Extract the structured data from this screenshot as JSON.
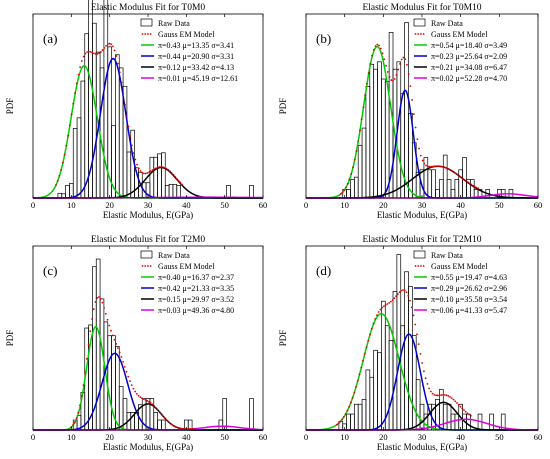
{
  "figure": {
    "xlabel": "Elastic Modulus, E(GPa)",
    "ylabel": "PDF",
    "legend_raw": "Raw Data",
    "legend_model": "Gauss EM Model"
  },
  "colors": {
    "raw_bar_edge": "#000000",
    "model_dots": "#e00000",
    "comp": [
      "#00cc00",
      "#0000cc",
      "#000000",
      "#dd00dd"
    ]
  },
  "chart_data": [
    {
      "type": "bar",
      "title": "Elastic Modulus Fit for T0M0",
      "panel": "(a)",
      "xlim": [
        0,
        60
      ],
      "xticks": [
        0,
        10,
        20,
        30,
        40,
        50,
        60
      ],
      "ylim": [
        0,
        0.07
      ],
      "grid": false,
      "legend_position": "top-right",
      "bin_width": 1,
      "hist": [
        [
          7,
          0.0018
        ],
        [
          8,
          0.0016
        ],
        [
          9,
          0.0048
        ],
        [
          10,
          0.0055
        ],
        [
          11,
          0.0265
        ],
        [
          12,
          0.0305
        ],
        [
          13,
          0.0445
        ],
        [
          14,
          0.0625
        ],
        [
          15,
          0.0785
        ],
        [
          16,
          0.0665
        ],
        [
          17,
          0.0555
        ],
        [
          18,
          0.0495
        ],
        [
          19,
          0.0755
        ],
        [
          20,
          0.0575
        ],
        [
          21,
          0.0275
        ],
        [
          22,
          0.0545
        ],
        [
          23,
          0.0495
        ],
        [
          24,
          0.0425
        ],
        [
          25,
          0.0175
        ],
        [
          26,
          0.0258
        ],
        [
          27,
          0.0115
        ],
        [
          28,
          0.0098
        ],
        [
          29,
          0.0058
        ],
        [
          30,
          0.0058
        ],
        [
          31,
          0.0155
        ],
        [
          32,
          0.0155
        ],
        [
          33,
          0.0168
        ],
        [
          34,
          0.0172
        ],
        [
          35,
          0.0048
        ],
        [
          36,
          0.0052
        ],
        [
          37,
          0.0052
        ],
        [
          38,
          0.0048
        ],
        [
          51,
          0.0048
        ],
        [
          57,
          0.0048
        ]
      ],
      "components": [
        {
          "label": "π=0.43  μ=13.35  σ=3.41",
          "pi": 0.43,
          "mu": 13.35,
          "sigma": 3.41
        },
        {
          "label": "π=0.44  μ=20.90  σ=3.31",
          "pi": 0.44,
          "mu": 20.9,
          "sigma": 3.31
        },
        {
          "label": "π=0.12  μ=33.42  σ=4.13",
          "pi": 0.12,
          "mu": 33.42,
          "sigma": 4.13
        },
        {
          "label": "π=0.01  μ=45.19  σ=12.61",
          "pi": 0.01,
          "mu": 45.19,
          "sigma": 12.61
        }
      ]
    },
    {
      "type": "bar",
      "title": "Elastic Modulus Fit for T0M10",
      "panel": "(b)",
      "xlim": [
        0,
        60
      ],
      "xticks": [
        0,
        10,
        20,
        30,
        40,
        50,
        60
      ],
      "ylim": [
        0,
        0.075
      ],
      "grid": false,
      "legend_position": "top-right",
      "bin_width": 1,
      "hist": [
        [
          10,
          0.0035
        ],
        [
          11,
          0.0035
        ],
        [
          12,
          0.0075
        ],
        [
          13,
          0.0085
        ],
        [
          14,
          0.0215
        ],
        [
          15,
          0.0285
        ],
        [
          16,
          0.0455
        ],
        [
          17,
          0.0545
        ],
        [
          18,
          0.0525
        ],
        [
          19,
          0.0555
        ],
        [
          20,
          0.0485
        ],
        [
          21,
          0.0475
        ],
        [
          22,
          0.0675
        ],
        [
          23,
          0.0525
        ],
        [
          24,
          0.0555
        ],
        [
          25,
          0.0425
        ],
        [
          26,
          0.0715
        ],
        [
          27,
          0.0345
        ],
        [
          28,
          0.0225
        ],
        [
          29,
          0.0105
        ],
        [
          30,
          0.0115
        ],
        [
          31,
          0.0165
        ],
        [
          32,
          0.0115
        ],
        [
          33,
          0.0115
        ],
        [
          34,
          0.0035
        ],
        [
          35,
          0.0075
        ],
        [
          36,
          0.0175
        ],
        [
          37,
          0.0075
        ],
        [
          38,
          0.0035
        ],
        [
          39,
          0.0075
        ],
        [
          40,
          0.0115
        ],
        [
          41,
          0.0165
        ],
        [
          42,
          0.0075
        ],
        [
          43,
          0.0075
        ],
        [
          44,
          0.0035
        ],
        [
          45,
          0.0035
        ],
        [
          47,
          0.0035
        ],
        [
          50,
          0.0035
        ],
        [
          51,
          0.0035
        ],
        [
          53,
          0.0035
        ]
      ],
      "components": [
        {
          "label": "π=0.54  μ=18.40  σ=3.49",
          "pi": 0.54,
          "mu": 18.4,
          "sigma": 3.49
        },
        {
          "label": "π=0.23  μ=25.64  σ=2.09",
          "pi": 0.23,
          "mu": 25.64,
          "sigma": 2.09
        },
        {
          "label": "π=0.21  μ=34.08  σ=6.47",
          "pi": 0.21,
          "mu": 34.08,
          "sigma": 6.47
        },
        {
          "label": "π=0.02  μ=52.28  σ=4.70",
          "pi": 0.02,
          "mu": 52.28,
          "sigma": 4.7
        }
      ]
    },
    {
      "type": "bar",
      "title": "Elastic Modulus Fit for T2M0",
      "panel": "(c)",
      "xlim": [
        0,
        60
      ],
      "xticks": [
        0,
        10,
        20,
        30,
        40,
        50,
        60
      ],
      "ylim": [
        0,
        0.12
      ],
      "grid": false,
      "legend_position": "top-right",
      "bin_width": 1,
      "hist": [
        [
          11,
          0.0065
        ],
        [
          12,
          0.0095
        ],
        [
          13,
          0.0245
        ],
        [
          14,
          0.0665
        ],
        [
          15,
          0.0685
        ],
        [
          16,
          0.1065
        ],
        [
          17,
          0.1115
        ],
        [
          18,
          0.0855
        ],
        [
          19,
          0.0705
        ],
        [
          20,
          0.0615
        ],
        [
          21,
          0.0615
        ],
        [
          22,
          0.0545
        ],
        [
          23,
          0.0285
        ],
        [
          24,
          0.0205
        ],
        [
          25,
          0.0115
        ],
        [
          26,
          0.0115
        ],
        [
          27,
          0.0115
        ],
        [
          28,
          0.0165
        ],
        [
          29,
          0.0205
        ],
        [
          30,
          0.0205
        ],
        [
          31,
          0.0205
        ],
        [
          32,
          0.0115
        ],
        [
          33,
          0.0065
        ],
        [
          34,
          0.0065
        ],
        [
          40,
          0.0065
        ],
        [
          41,
          0.0065
        ],
        [
          49,
          0.0065
        ],
        [
          50,
          0.0205
        ],
        [
          57,
          0.0205
        ]
      ],
      "components": [
        {
          "label": "π=0.40  μ=16.37  σ=2.37",
          "pi": 0.4,
          "mu": 16.37,
          "sigma": 2.37
        },
        {
          "label": "π=0.42  μ=21.33  σ=3.35",
          "pi": 0.42,
          "mu": 21.33,
          "sigma": 3.35
        },
        {
          "label": "π=0.15  μ=29.97  σ=3.52",
          "pi": 0.15,
          "mu": 29.97,
          "sigma": 3.52
        },
        {
          "label": "π=0.03  μ=49.36  σ=4.80",
          "pi": 0.03,
          "mu": 49.36,
          "sigma": 4.8
        }
      ]
    },
    {
      "type": "bar",
      "title": "Elastic Modulus Fit for T2M10",
      "panel": "(d)",
      "xlim": [
        0,
        60
      ],
      "xticks": [
        0,
        10,
        20,
        30,
        40,
        50,
        60
      ],
      "ylim": [
        0,
        0.075
      ],
      "grid": false,
      "legend_position": "top-right",
      "bin_width": 1,
      "hist": [
        [
          9,
          0.0035
        ],
        [
          10,
          0.0025
        ],
        [
          11,
          0.0065
        ],
        [
          12,
          0.0065
        ],
        [
          13,
          0.0105
        ],
        [
          14,
          0.0105
        ],
        [
          15,
          0.0125
        ],
        [
          16,
          0.0245
        ],
        [
          17,
          0.0215
        ],
        [
          18,
          0.0325
        ],
        [
          19,
          0.0315
        ],
        [
          20,
          0.0525
        ],
        [
          21,
          0.0425
        ],
        [
          22,
          0.0365
        ],
        [
          23,
          0.0565
        ],
        [
          24,
          0.0715
        ],
        [
          25,
          0.0425
        ],
        [
          26,
          0.0645
        ],
        [
          27,
          0.0585
        ],
        [
          28,
          0.0385
        ],
        [
          29,
          0.0205
        ],
        [
          30,
          0.0105
        ],
        [
          31,
          0.0065
        ],
        [
          32,
          0.0105
        ],
        [
          33,
          0.0105
        ],
        [
          34,
          0.0125
        ],
        [
          35,
          0.0165
        ],
        [
          36,
          0.0105
        ],
        [
          37,
          0.0105
        ],
        [
          38,
          0.0065
        ],
        [
          39,
          0.0065
        ],
        [
          40,
          0.0105
        ],
        [
          41,
          0.0065
        ],
        [
          42,
          0.0065
        ],
        [
          45,
          0.0065
        ],
        [
          48,
          0.0065
        ],
        [
          51,
          0.0065
        ]
      ],
      "components": [
        {
          "label": "π=0.55  μ=19.47  σ=4.63",
          "pi": 0.55,
          "mu": 19.47,
          "sigma": 4.63
        },
        {
          "label": "π=0.29  μ=26.62  σ=2.96",
          "pi": 0.29,
          "mu": 26.62,
          "sigma": 2.96
        },
        {
          "label": "π=0.10  μ=35.58  σ=3.54",
          "pi": 0.1,
          "mu": 35.58,
          "sigma": 3.54
        },
        {
          "label": "π=0.06  μ=41.33  σ=5.47",
          "pi": 0.06,
          "mu": 41.33,
          "sigma": 5.47
        }
      ]
    }
  ]
}
